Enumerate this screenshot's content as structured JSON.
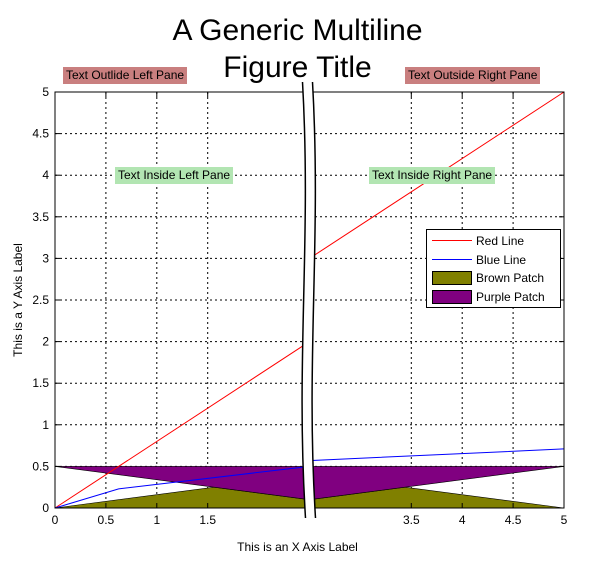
{
  "figure": {
    "title_line1": "A Generic Multiline",
    "title_line2": "Figure Title",
    "xlabel": "This is an X Axis Label",
    "ylabel": "This is a Y Axis Label",
    "annotations": {
      "outside_left": "Text Outlide Left Pane",
      "outside_right": "Text Outside Right Pane",
      "inside_left": "Text Inside Left Pane",
      "inside_right": "Text Inside Right Pane"
    },
    "colors": {
      "red_line": "#ff0000",
      "blue_line": "#0000ff",
      "brown_patch": "#808000",
      "purple_patch": "#800080",
      "outside_label_bg": "#c97f7f",
      "inside_label_bg": "#b2e5b2"
    }
  },
  "chart_data": {
    "type": "line",
    "title": "A Generic Multiline Figure Title",
    "xlabel": "This is an X Axis Label",
    "ylabel": "This is a Y Axis Label",
    "xlim": [
      0,
      5
    ],
    "ylim": [
      0,
      5
    ],
    "broken_x_axis": {
      "left_pane": [
        0,
        2
      ],
      "right_pane": [
        3,
        5
      ]
    },
    "grid": true,
    "grid_style": "dotted",
    "legend_position": "right",
    "x_ticks": [
      "0",
      "0.5",
      "1",
      "1.5",
      "3.5",
      "4",
      "4.5",
      "5"
    ],
    "y_ticks": [
      "0",
      "0.5",
      "1",
      "1.5",
      "2",
      "2.5",
      "3",
      "3.5",
      "4",
      "4.5",
      "5"
    ],
    "series": [
      {
        "name": "Red Line",
        "kind": "line",
        "color": "#ff0000",
        "x": [
          0,
          2,
          3,
          5
        ],
        "y": [
          0,
          2,
          3,
          5
        ]
      },
      {
        "name": "Blue Line",
        "kind": "line",
        "color": "#0000ff",
        "x": [
          0,
          0.5,
          2,
          3,
          5
        ],
        "y": [
          0,
          0.23,
          0.5,
          0.57,
          0.71
        ]
      },
      {
        "name": "Brown Patch",
        "kind": "patch",
        "color": "#808000",
        "x": [
          0,
          1.25,
          2,
          2,
          3,
          3.75,
          5,
          0
        ],
        "y": [
          0,
          0.25,
          0.1,
          0.1,
          0.1,
          0.25,
          0,
          0
        ]
      },
      {
        "name": "Purple Patch",
        "kind": "patch",
        "color": "#800080",
        "x": [
          0,
          1.25,
          2,
          2,
          3,
          3.75,
          5,
          3,
          2,
          1.25
        ],
        "y": [
          0.5,
          0.5,
          0.5,
          0.5,
          0.5,
          0.5,
          0.5,
          0.1,
          0.1,
          0.25
        ]
      }
    ]
  }
}
